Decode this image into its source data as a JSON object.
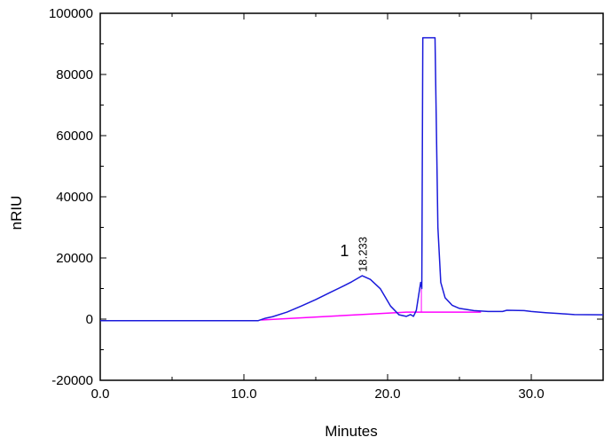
{
  "chart_data": {
    "type": "line",
    "title": "",
    "xlabel": "Minutes",
    "ylabel": "nRIU",
    "xlim": [
      0,
      35
    ],
    "ylim": [
      -20000,
      100000
    ],
    "x_ticks": [
      "0.0",
      "10.0",
      "20.0",
      "30.0"
    ],
    "x_tick_values": [
      0,
      10,
      20,
      30
    ],
    "y_ticks": [
      "-20000",
      "0",
      "20000",
      "40000",
      "60000",
      "80000",
      "100000"
    ],
    "y_tick_values": [
      -20000,
      0,
      20000,
      40000,
      60000,
      80000,
      100000
    ],
    "grid": false,
    "colors": {
      "signal": "#1a1adb",
      "baseline": "#ff00ff"
    },
    "series": [
      {
        "points": [
          [
            0,
            -500
          ],
          [
            11.0,
            -500
          ],
          [
            11.5,
            300
          ],
          [
            12,
            800
          ],
          [
            13,
            2300
          ],
          [
            14,
            4300
          ],
          [
            15,
            6400
          ],
          [
            16,
            8700
          ],
          [
            17,
            11000
          ],
          [
            17.5,
            12200
          ],
          [
            18.233,
            14200
          ],
          [
            18.8,
            13000
          ],
          [
            19.5,
            9900
          ],
          [
            20.2,
            4300
          ],
          [
            20.8,
            1400
          ],
          [
            21.3,
            900
          ],
          [
            21.6,
            1500
          ],
          [
            21.8,
            900
          ],
          [
            22.0,
            2900
          ],
          [
            22.2,
            9000
          ],
          [
            22.3,
            12000
          ],
          [
            22.38,
            10000
          ],
          [
            22.45,
            92000
          ],
          [
            23.3,
            92000
          ],
          [
            23.5,
            30000
          ],
          [
            23.7,
            12000
          ],
          [
            24.0,
            7000
          ],
          [
            24.5,
            4500
          ],
          [
            25.0,
            3500
          ],
          [
            26,
            2800
          ],
          [
            27,
            2500
          ],
          [
            28,
            2500
          ],
          [
            28.3,
            2900
          ],
          [
            29.5,
            2800
          ],
          [
            30,
            2500
          ],
          [
            31,
            2100
          ],
          [
            32,
            1800
          ],
          [
            33,
            1500
          ],
          [
            35,
            1400
          ]
        ]
      }
    ],
    "baseline": {
      "points": [
        [
          11.2,
          -300
        ],
        [
          21.3,
          2300
        ],
        [
          26.5,
          2300
        ]
      ],
      "drop_line": {
        "x": 22.35,
        "y": [
          2300,
          10000
        ]
      }
    },
    "annotations": [
      {
        "label": "1",
        "x": 17.0,
        "y": 20000
      },
      {
        "label": "18.233",
        "x": 18.233,
        "y": 16000,
        "rotated": true
      }
    ]
  }
}
